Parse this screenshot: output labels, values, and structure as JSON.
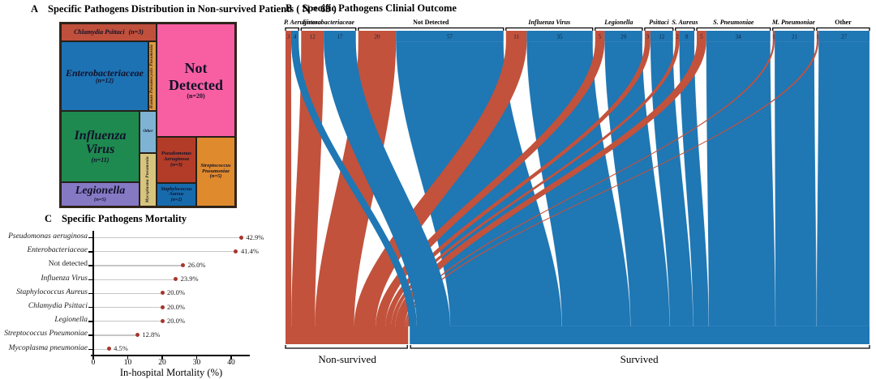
{
  "chart_data": [
    {
      "type": "treemap",
      "panel_label": "A",
      "title": "Specific Pathogens Distribution in Non-survived Patients ( N = 63 )",
      "total": 63,
      "items": [
        {
          "id": "chlamydia",
          "label": "Chlamydia Psittaci",
          "n": 3,
          "color": "#c0503c"
        },
        {
          "id": "enterobacteriaceae",
          "label": "Enterobacteriaceae",
          "n": 12,
          "color": "#1d72b3"
        },
        {
          "id": "hpp",
          "label": "Human Pneumocystis Pneumonia",
          "color": "#dd9b3e"
        },
        {
          "id": "notdetected",
          "label": "Not Detected",
          "n": 20,
          "color": "#f85fa2"
        },
        {
          "id": "influenza",
          "label": "Influenza Virus",
          "n": 11,
          "color": "#1e8a50"
        },
        {
          "id": "other",
          "label": "Other",
          "color": "#7fb3d3"
        },
        {
          "id": "mycoplasma",
          "label": "Mycoplasma Pneumonia",
          "color": "#d8c57d"
        },
        {
          "id": "legionella",
          "label": "Legionella",
          "n": 5,
          "color": "#8679c4"
        },
        {
          "id": "pseudomonas",
          "label": "Pseudomonas Aeruginosa",
          "n": 3,
          "color": "#b23c28"
        },
        {
          "id": "staphylococcus",
          "label": "Staphylococcus Aureus",
          "n": 2,
          "color": "#176bac"
        },
        {
          "id": "streptococcus",
          "label": "Streptococcus Pneumoniae",
          "n": 5,
          "color": "#e08a2e"
        }
      ]
    },
    {
      "type": "sankey",
      "panel_label": "B",
      "title": "Specific Pathogens Clinial Outcome",
      "colors": {
        "non_survived": "#c2523c",
        "survived": "#1f77b4"
      },
      "outcome_labels": {
        "non_survived": "Non-survived",
        "survived": "Survived"
      },
      "categories": [
        {
          "label": "P. Aeruginosa",
          "italic": true,
          "non_survived": 3,
          "survived": 4
        },
        {
          "label": "Enterobacteriaceae",
          "italic": true,
          "non_survived": 12,
          "survived": 17
        },
        {
          "label": "Not Detected",
          "italic": false,
          "non_survived": 20,
          "survived": 57
        },
        {
          "label": "Influenza Virus",
          "italic": true,
          "non_survived": 11,
          "survived": 35
        },
        {
          "label": "Legionella",
          "italic": true,
          "non_survived": 5,
          "survived": 20
        },
        {
          "label": "Psittaci",
          "italic": true,
          "non_survived": 3,
          "survived": 12
        },
        {
          "label": "S. Aureus",
          "italic": true,
          "non_survived": 2,
          "survived": 8
        },
        {
          "label": "S. Pneumoniae",
          "italic": true,
          "non_survived": 5,
          "survived": 34
        },
        {
          "label": "M. Pneumoniae",
          "italic": true,
          "non_survived": 1,
          "survived": 21
        },
        {
          "label": "Other",
          "italic": false,
          "non_survived": 1,
          "survived": 27
        }
      ]
    },
    {
      "type": "scatter",
      "panel_label": "C",
      "title": "Specific Pathogens Mortality",
      "xlabel": "In-hospital Mortality (%)",
      "xticks": [
        0,
        10,
        20,
        30,
        40
      ],
      "xlim": [
        0,
        45
      ],
      "dot_color": "#a5362c",
      "points": [
        {
          "label": "Pseudomonas aeruginosa",
          "italic": true,
          "value": 42.9,
          "display": "42.9%"
        },
        {
          "label": "Enterobacteriaceae",
          "italic": true,
          "value": 41.4,
          "display": "41.4%"
        },
        {
          "label": "Not detected",
          "italic": false,
          "value": 26.0,
          "display": "26.0%"
        },
        {
          "label": "Influenza Virus",
          "italic": true,
          "value": 23.9,
          "display": "23.9%"
        },
        {
          "label": "Staphylococcus Aureus",
          "italic": true,
          "value": 20.0,
          "display": "20.0%"
        },
        {
          "label": "Chlamydia Psittaci",
          "italic": true,
          "value": 20.0,
          "display": "20.0%"
        },
        {
          "label": "Legionella",
          "italic": true,
          "value": 20.0,
          "display": "20.0%"
        },
        {
          "label": "Streptococcus Pneumoniae",
          "italic": true,
          "value": 12.8,
          "display": "12.8%"
        },
        {
          "label": "Mycoplasma pneumoniae",
          "italic": true,
          "value": 4.5,
          "display": "4.5%"
        }
      ]
    }
  ]
}
